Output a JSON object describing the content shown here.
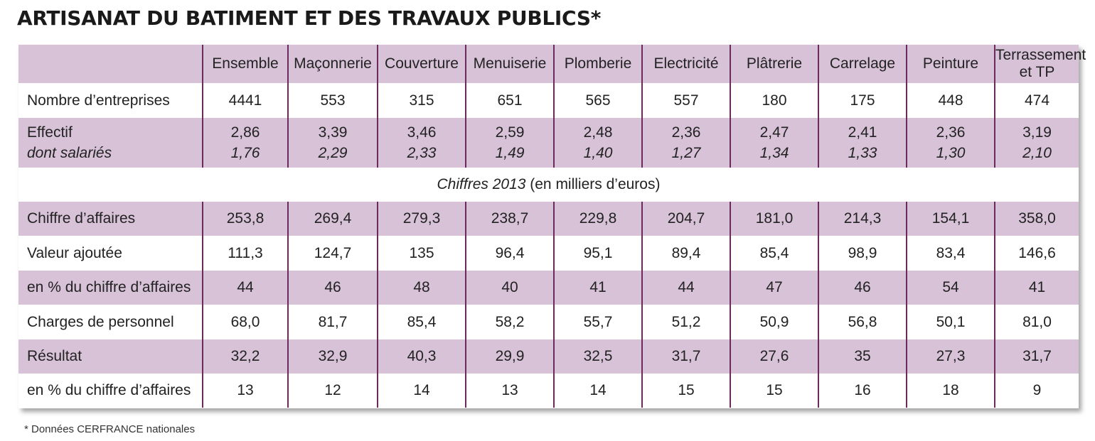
{
  "title": "ARTISANAT DU BATIMENT ET DES TRAVAUX PUBLICS*",
  "columns": [
    "Ensemble",
    "Maçonnerie",
    "Couverture",
    "Menuiserie",
    "Plomberie",
    "Electricité",
    "Plâtrerie",
    "Carrelage",
    "Peinture",
    "Terrassement et TP"
  ],
  "rows_top": {
    "nombre": {
      "label": "Nombre d’entreprises",
      "values": [
        "4441",
        "553",
        "315",
        "651",
        "565",
        "557",
        "180",
        "175",
        "448",
        "474"
      ]
    },
    "effectif": {
      "label": "Effectif",
      "values": [
        "2,86",
        "3,39",
        "3,46",
        "2,59",
        "2,48",
        "2,36",
        "2,47",
        "2,41",
        "2,36",
        "3,19"
      ]
    },
    "salaries": {
      "label": "dont salariés",
      "values": [
        "1,76",
        "2,29",
        "2,33",
        "1,49",
        "1,40",
        "1,27",
        "1,34",
        "1,33",
        "1,30",
        "2,10"
      ]
    }
  },
  "section": {
    "italic": "Chiffres 2013",
    "rest": " (en milliers d’euros)"
  },
  "rows_bottom": [
    {
      "label": "Chiffre d’affaires",
      "values": [
        "253,8",
        "269,4",
        "279,3",
        "238,7",
        "229,8",
        "204,7",
        "181,0",
        "214,3",
        "154,1",
        "358,0"
      ]
    },
    {
      "label": "Valeur ajoutée",
      "values": [
        "111,3",
        "124,7",
        "135",
        "96,4",
        "95,1",
        "89,4",
        "85,4",
        "98,9",
        "83,4",
        "146,6"
      ]
    },
    {
      "label": "en % du chiffre d’affaires",
      "values": [
        "44",
        "46",
        "48",
        "40",
        "41",
        "44",
        "47",
        "46",
        "54",
        "41"
      ]
    },
    {
      "label": "Charges de personnel",
      "values": [
        "68,0",
        "81,7",
        "85,4",
        "58,2",
        "55,7",
        "51,2",
        "50,9",
        "56,8",
        "50,1",
        "81,0"
      ]
    },
    {
      "label": "Résultat",
      "values": [
        "32,2",
        "32,9",
        "40,3",
        "29,9",
        "32,5",
        "31,7",
        "27,6",
        "35",
        "27,3",
        "31,7"
      ]
    },
    {
      "label": "en % du chiffre d’affaires",
      "values": [
        "13",
        "12",
        "14",
        "13",
        "14",
        "15",
        "15",
        "16",
        "18",
        "9"
      ]
    }
  ],
  "footnote": "* Données CERFRANCE nationales"
}
